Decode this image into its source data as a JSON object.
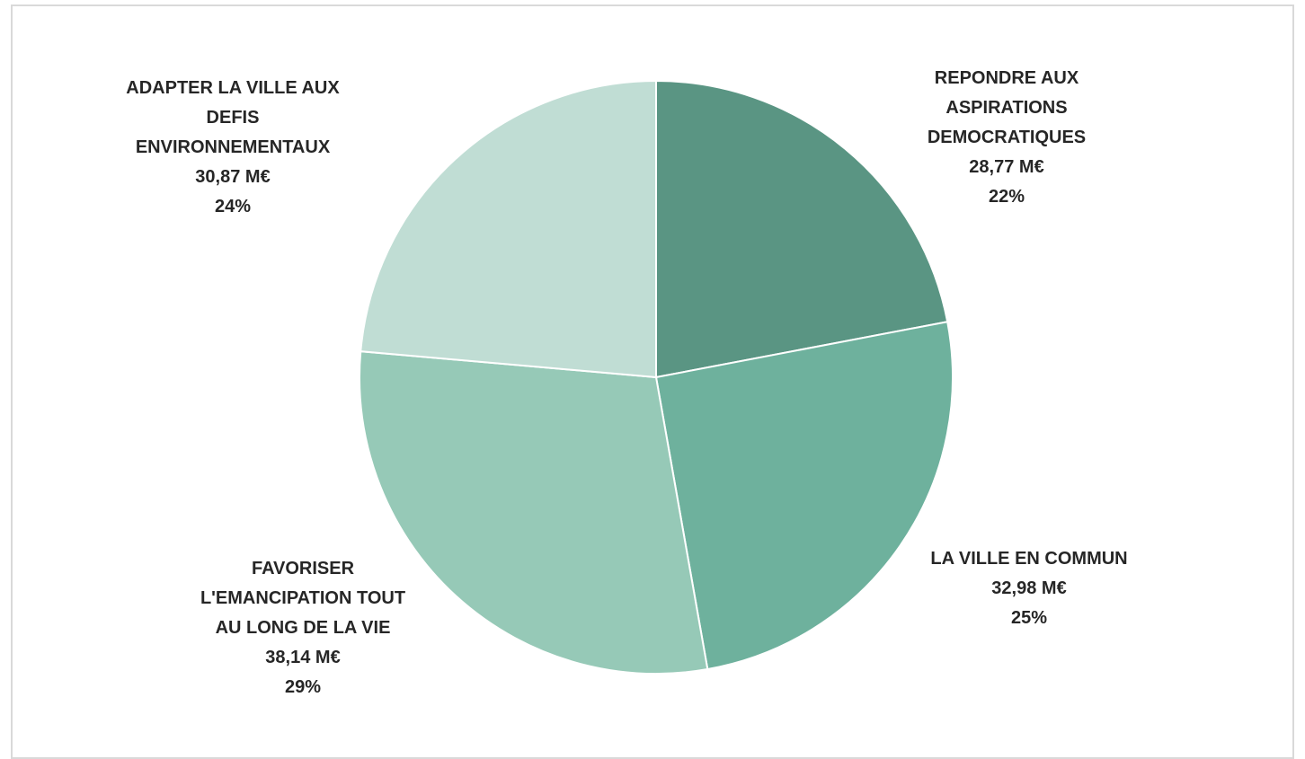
{
  "chart_data": {
    "type": "pie",
    "unit": "M€",
    "start_angle_deg": 0,
    "direction": "clockwise",
    "slices": [
      {
        "label_lines": [
          "REPONDRE AUX",
          "ASPIRATIONS",
          "DEMOCRATIQUES"
        ],
        "value": 28.77,
        "value_label": "28,77 M€",
        "percent_label": "22%",
        "color": "#5a9583"
      },
      {
        "label_lines": [
          "LA VILLE EN COMMUN"
        ],
        "value": 32.98,
        "value_label": "32,98 M€",
        "percent_label": "25%",
        "color": "#6eb19d"
      },
      {
        "label_lines": [
          "FAVORISER",
          "L'EMANCIPATION TOUT",
          "AU LONG DE LA VIE"
        ],
        "value": 38.14,
        "value_label": "38,14 M€",
        "percent_label": "29%",
        "color": "#96c9b7"
      },
      {
        "label_lines": [
          "ADAPTER LA VILLE AUX",
          "DEFIS",
          "ENVIRONNEMENTAUX"
        ],
        "value": 30.87,
        "value_label": "30,87 M€",
        "percent_label": "24%",
        "color": "#c0ddd4"
      }
    ]
  }
}
